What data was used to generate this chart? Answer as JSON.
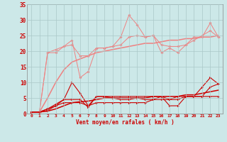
{
  "x": [
    0,
    1,
    2,
    3,
    4,
    5,
    6,
    7,
    8,
    9,
    10,
    11,
    12,
    13,
    14,
    15,
    16,
    17,
    18,
    19,
    20,
    21,
    22,
    23
  ],
  "line1_light": [
    0.5,
    0.5,
    19.5,
    19.5,
    21.5,
    23.5,
    11.5,
    13.5,
    21.0,
    21.0,
    21.5,
    24.5,
    31.5,
    28.5,
    24.5,
    25.0,
    19.5,
    21.0,
    19.5,
    22.0,
    24.5,
    24.5,
    29.0,
    24.5
  ],
  "line2_light": [
    0.5,
    0.5,
    19.5,
    20.5,
    21.5,
    22.0,
    18.5,
    18.5,
    21.0,
    21.0,
    21.5,
    22.0,
    24.5,
    25.0,
    24.5,
    25.0,
    22.0,
    21.5,
    21.5,
    22.0,
    23.5,
    25.0,
    26.5,
    24.5
  ],
  "trend_light": [
    0.5,
    0.5,
    5.0,
    10.0,
    14.0,
    16.5,
    17.5,
    18.5,
    19.5,
    20.0,
    20.5,
    21.0,
    21.5,
    22.0,
    22.5,
    22.5,
    23.0,
    23.5,
    23.5,
    24.0,
    24.0,
    24.5,
    24.5,
    25.0
  ],
  "line1_dark": [
    0.5,
    0.5,
    1.5,
    3.0,
    4.5,
    10.0,
    6.5,
    2.5,
    5.5,
    5.5,
    5.5,
    5.5,
    5.5,
    5.5,
    5.5,
    5.5,
    5.5,
    4.5,
    5.5,
    5.5,
    5.5,
    8.5,
    11.5,
    9.5
  ],
  "line2_dark": [
    0.5,
    0.5,
    1.5,
    2.5,
    4.5,
    4.5,
    4.5,
    2.0,
    5.5,
    5.5,
    5.0,
    4.5,
    4.5,
    5.0,
    4.5,
    4.5,
    5.5,
    2.5,
    2.5,
    5.5,
    5.5,
    5.5,
    8.5,
    9.5
  ],
  "line3_dark": [
    0.5,
    0.5,
    1.0,
    2.5,
    3.5,
    3.5,
    3.5,
    2.5,
    3.5,
    3.5,
    3.5,
    3.5,
    3.5,
    3.5,
    3.5,
    4.5,
    4.5,
    4.5,
    4.5,
    5.5,
    5.5,
    5.5,
    5.5,
    5.5
  ],
  "trend_dark": [
    0.5,
    0.5,
    0.8,
    1.5,
    2.5,
    3.5,
    3.8,
    4.0,
    4.5,
    5.0,
    5.0,
    5.0,
    5.0,
    5.0,
    5.0,
    5.5,
    5.5,
    5.5,
    5.5,
    6.0,
    6.0,
    6.5,
    7.0,
    7.5
  ],
  "color_light": "#f08080",
  "color_dark": "#cc0000",
  "bg_color": "#cce8e8",
  "grid_color": "#aac8c8",
  "xlabel": "Vent moyen/en rafales ( km/h )",
  "ylim": [
    0,
    35
  ],
  "xlim": [
    -0.5,
    23.5
  ],
  "yticks": [
    0,
    5,
    10,
    15,
    20,
    25,
    30,
    35
  ],
  "xticks": [
    0,
    1,
    2,
    3,
    4,
    5,
    6,
    7,
    8,
    9,
    10,
    11,
    12,
    13,
    14,
    15,
    16,
    17,
    18,
    19,
    20,
    21,
    22,
    23
  ]
}
